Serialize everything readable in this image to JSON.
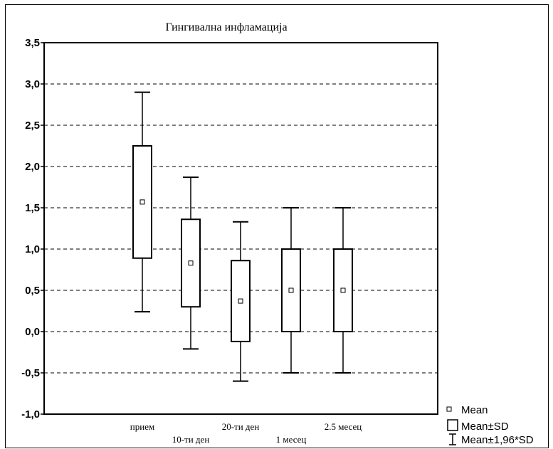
{
  "chart_data": {
    "type": "box",
    "title": "Гингивална инфламација",
    "xlabel": "",
    "ylabel": "",
    "ylim": [
      -1.0,
      3.5
    ],
    "yticks": [
      "3,5",
      "3,0",
      "2,5",
      "2,0",
      "1,5",
      "1,0",
      "0,5",
      "0,0",
      "-0,5",
      "-1,0"
    ],
    "ytick_values": [
      3.5,
      3.0,
      2.5,
      2.0,
      1.5,
      1.0,
      0.5,
      0.0,
      -0.5,
      -1.0
    ],
    "grid": true,
    "legend_position": "bottom-right",
    "categories": [
      "прием",
      "10-ти ден",
      "20-ти ден",
      "1 месец",
      "2.5 месец"
    ],
    "series": [
      {
        "name": "Mean",
        "values": [
          1.57,
          0.83,
          0.37,
          0.5,
          0.5
        ]
      },
      {
        "name": "Mean±SD",
        "low": [
          0.89,
          0.3,
          -0.12,
          0.0,
          0.0
        ],
        "high": [
          2.25,
          1.36,
          0.86,
          1.0,
          1.0
        ]
      },
      {
        "name": "Mean±1,96*SD",
        "low": [
          0.24,
          -0.21,
          -0.6,
          -0.5,
          -0.5
        ],
        "high": [
          2.9,
          1.87,
          1.33,
          1.5,
          1.5
        ]
      }
    ]
  },
  "legend": {
    "mean_label": "Mean",
    "sd_label": "Mean±SD",
    "ci_label": "Mean±1,96*SD"
  }
}
